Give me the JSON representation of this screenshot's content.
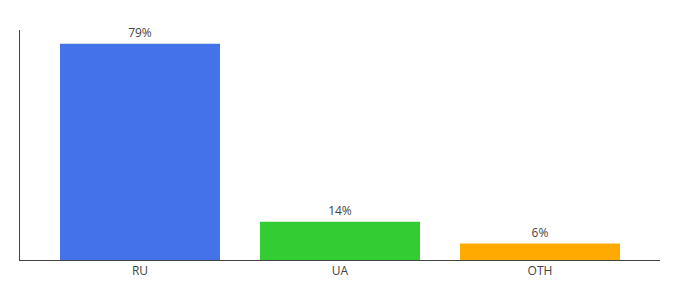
{
  "chart_data": {
    "type": "bar",
    "categories": [
      "RU",
      "UA",
      "OTH"
    ],
    "values": [
      79,
      14,
      6
    ],
    "value_labels": [
      "79%",
      "14%",
      "6%"
    ],
    "colors": [
      "#4472e8",
      "#33cc33",
      "#ffaa00"
    ],
    "ylim": [
      0,
      84
    ],
    "grid": false,
    "data_labels": true,
    "tick_labels": "x"
  }
}
